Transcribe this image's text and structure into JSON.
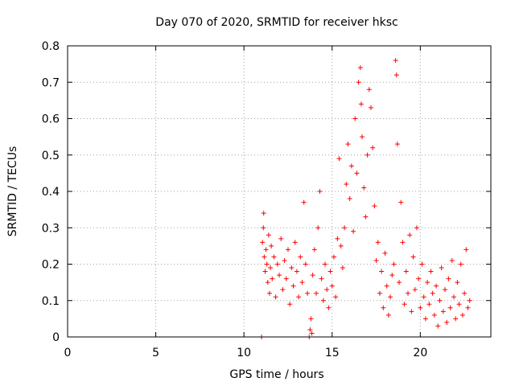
{
  "chart_data": {
    "type": "scatter",
    "title": "Day 070 of 2020, SRMTID for receiver hksc",
    "xlabel": "GPS time / hours",
    "ylabel": "SRMTID / TECUs",
    "xlim": [
      0,
      24
    ],
    "ylim": [
      0,
      0.8
    ],
    "x_ticks": [
      0,
      5,
      10,
      15,
      20
    ],
    "x_tick_labels": [
      "0",
      "5",
      "10",
      "15",
      "20"
    ],
    "y_ticks": [
      0,
      0.1,
      0.2,
      0.3,
      0.4,
      0.5,
      0.6,
      0.7,
      0.8
    ],
    "y_tick_labels": [
      "0",
      "0.1",
      "0.2",
      "0.3",
      "0.4",
      "0.5",
      "0.6",
      "0.7",
      "0.8"
    ],
    "grid": true,
    "marker": "+",
    "color": "#ff0000",
    "series": [
      {
        "name": "SRMTID",
        "x": [
          11.0,
          11.05,
          11.1,
          11.12,
          11.15,
          11.2,
          11.25,
          11.3,
          11.35,
          11.4,
          11.45,
          11.5,
          11.55,
          11.6,
          11.7,
          11.8,
          11.9,
          12.0,
          12.1,
          12.2,
          12.3,
          12.4,
          12.5,
          12.6,
          12.7,
          12.8,
          12.9,
          13.0,
          13.1,
          13.2,
          13.3,
          13.4,
          13.5,
          13.6,
          13.7,
          13.75,
          13.8,
          13.85,
          13.9,
          14.0,
          14.1,
          14.2,
          14.3,
          14.4,
          14.5,
          14.6,
          14.7,
          14.8,
          14.9,
          15.0,
          15.1,
          15.2,
          15.3,
          15.4,
          15.5,
          15.6,
          15.7,
          15.8,
          15.9,
          16.0,
          16.1,
          16.2,
          16.3,
          16.4,
          16.5,
          16.6,
          16.65,
          16.7,
          16.8,
          16.9,
          17.0,
          17.1,
          17.2,
          17.3,
          17.4,
          17.5,
          17.6,
          17.7,
          17.8,
          17.9,
          18.0,
          18.1,
          18.2,
          18.3,
          18.4,
          18.5,
          18.6,
          18.65,
          18.7,
          18.8,
          18.9,
          19.0,
          19.1,
          19.2,
          19.3,
          19.4,
          19.5,
          19.6,
          19.7,
          19.8,
          19.9,
          20.0,
          20.1,
          20.2,
          20.3,
          20.4,
          20.5,
          20.6,
          20.7,
          20.8,
          20.9,
          21.0,
          21.1,
          21.2,
          21.3,
          21.4,
          21.5,
          21.6,
          21.7,
          21.8,
          21.9,
          22.0,
          22.1,
          22.2,
          22.3,
          22.4,
          22.5,
          22.6,
          22.7,
          22.8
        ],
        "y": [
          0.0,
          0.26,
          0.3,
          0.34,
          0.22,
          0.18,
          0.24,
          0.2,
          0.15,
          0.28,
          0.12,
          0.19,
          0.25,
          0.16,
          0.22,
          0.11,
          0.2,
          0.17,
          0.27,
          0.13,
          0.21,
          0.16,
          0.24,
          0.09,
          0.19,
          0.14,
          0.26,
          0.18,
          0.11,
          0.22,
          0.15,
          0.37,
          0.2,
          0.12,
          0.0,
          0.02,
          0.05,
          0.01,
          0.17,
          0.24,
          0.12,
          0.3,
          0.4,
          0.16,
          0.1,
          0.2,
          0.13,
          0.08,
          0.18,
          0.14,
          0.22,
          0.11,
          0.27,
          0.49,
          0.25,
          0.19,
          0.3,
          0.42,
          0.53,
          0.38,
          0.47,
          0.29,
          0.6,
          0.45,
          0.7,
          0.74,
          0.64,
          0.55,
          0.41,
          0.33,
          0.5,
          0.68,
          0.63,
          0.52,
          0.36,
          0.21,
          0.26,
          0.12,
          0.18,
          0.08,
          0.23,
          0.14,
          0.06,
          0.11,
          0.17,
          0.2,
          0.76,
          0.72,
          0.53,
          0.15,
          0.37,
          0.26,
          0.09,
          0.18,
          0.12,
          0.28,
          0.07,
          0.22,
          0.13,
          0.3,
          0.16,
          0.08,
          0.2,
          0.11,
          0.05,
          0.15,
          0.09,
          0.18,
          0.12,
          0.06,
          0.14,
          0.03,
          0.1,
          0.19,
          0.07,
          0.13,
          0.04,
          0.16,
          0.08,
          0.21,
          0.11,
          0.05,
          0.15,
          0.09,
          0.2,
          0.06,
          0.12,
          0.24,
          0.08,
          0.1
        ]
      }
    ]
  }
}
